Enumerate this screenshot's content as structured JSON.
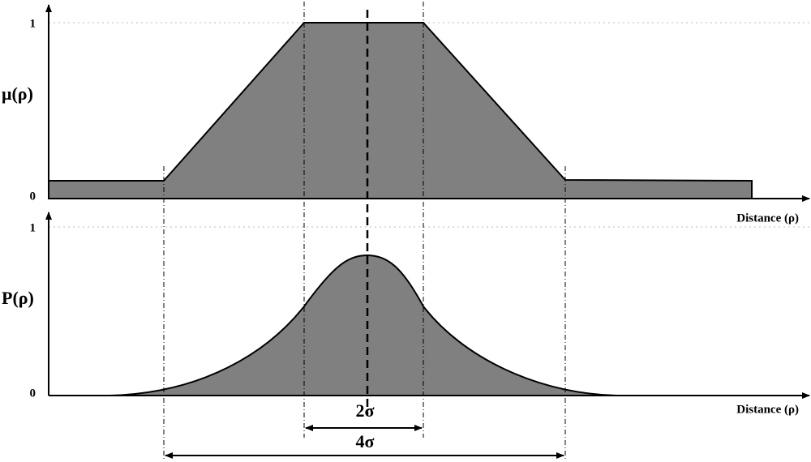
{
  "top_panel": {
    "y_label": "μ(ρ)",
    "y_tick_top": "1",
    "y_tick_bottom": "0",
    "x_label": "Distance (ρ)"
  },
  "bottom_panel": {
    "y_label": "P(ρ)",
    "y_tick_top": "1",
    "y_tick_bottom": "0",
    "x_label": "Distance (ρ)"
  },
  "annotations": {
    "inner_width": "2σ",
    "outer_width": "4σ"
  }
}
